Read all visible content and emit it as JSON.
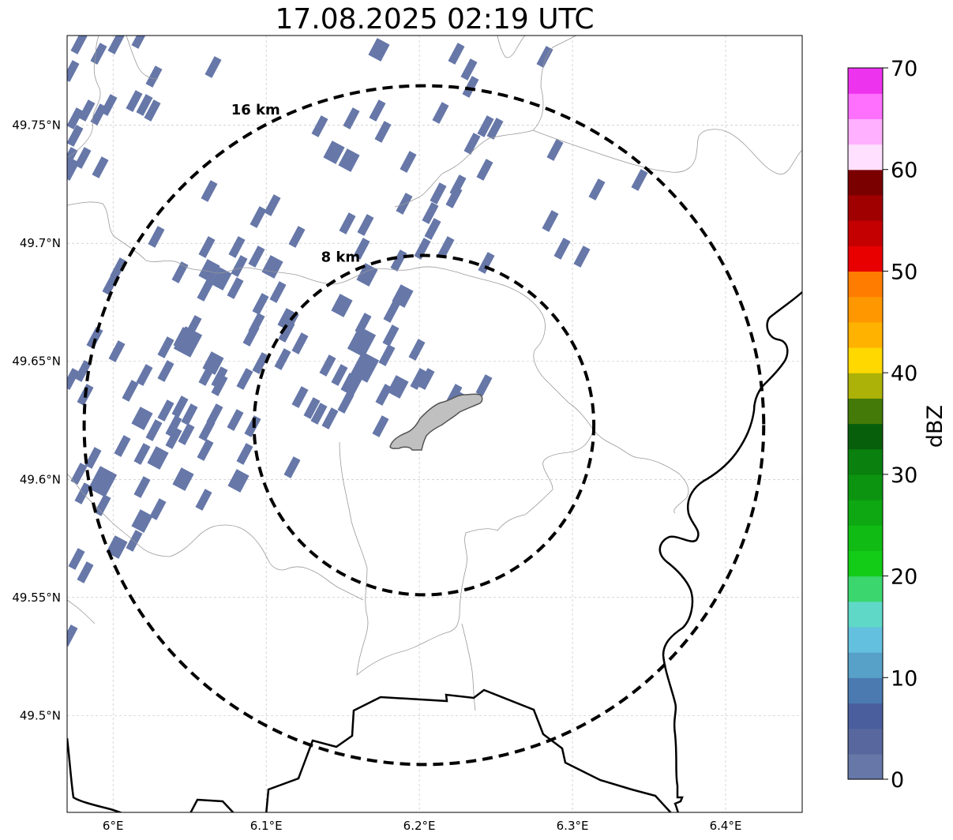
{
  "title": "17.08.2025 02:19 UTC",
  "map": {
    "lon_range": [
      5.97,
      6.45
    ],
    "lat_range": [
      49.459,
      49.788
    ],
    "lon_ticks": [
      {
        "value": 6.0,
        "label": "6°E"
      },
      {
        "value": 6.1,
        "label": "6.1°E"
      },
      {
        "value": 6.2,
        "label": "6.2°E"
      },
      {
        "value": 6.3,
        "label": "6.3°E"
      },
      {
        "value": 6.4,
        "label": "6.4°E"
      }
    ],
    "lat_ticks": [
      {
        "value": 49.5,
        "label": "49.5°N"
      },
      {
        "value": 49.55,
        "label": "49.55°N"
      },
      {
        "value": 49.6,
        "label": "49.6°N"
      },
      {
        "value": 49.65,
        "label": "49.65°N"
      },
      {
        "value": 49.7,
        "label": "49.7°N"
      },
      {
        "value": 49.75,
        "label": "49.75°N"
      }
    ],
    "gridlines": true,
    "radar_center": {
      "lon": 6.203,
      "lat": 49.623
    },
    "range_rings": [
      {
        "radius_km": 8,
        "label": "8 km"
      },
      {
        "radius_km": 16,
        "label": "16 km"
      }
    ],
    "echo_color": "#6677a8",
    "shaded_area_color": "#c0c0c0"
  },
  "colorbar": {
    "label": "dBZ",
    "min": 0,
    "max": 70,
    "tick_labels": [
      "0",
      "10",
      "20",
      "30",
      "40",
      "50",
      "60",
      "70"
    ],
    "colors": [
      "#6677a8",
      "#58689f",
      "#4a5e9e",
      "#4a7ab0",
      "#57a0c8",
      "#63c0de",
      "#5fd8c8",
      "#3cd66e",
      "#12cc18",
      "#10bc14",
      "#0ea812",
      "#0c9410",
      "#0a800e",
      "#075e0b",
      "#437a08",
      "#acb208",
      "#ffd800",
      "#ffb200",
      "#ff9700",
      "#ff7c00",
      "#e80000",
      "#c40000",
      "#a00000",
      "#7a0000",
      "#ffe0ff",
      "#ffb0ff",
      "#ff70ff",
      "#ee33ee"
    ]
  }
}
